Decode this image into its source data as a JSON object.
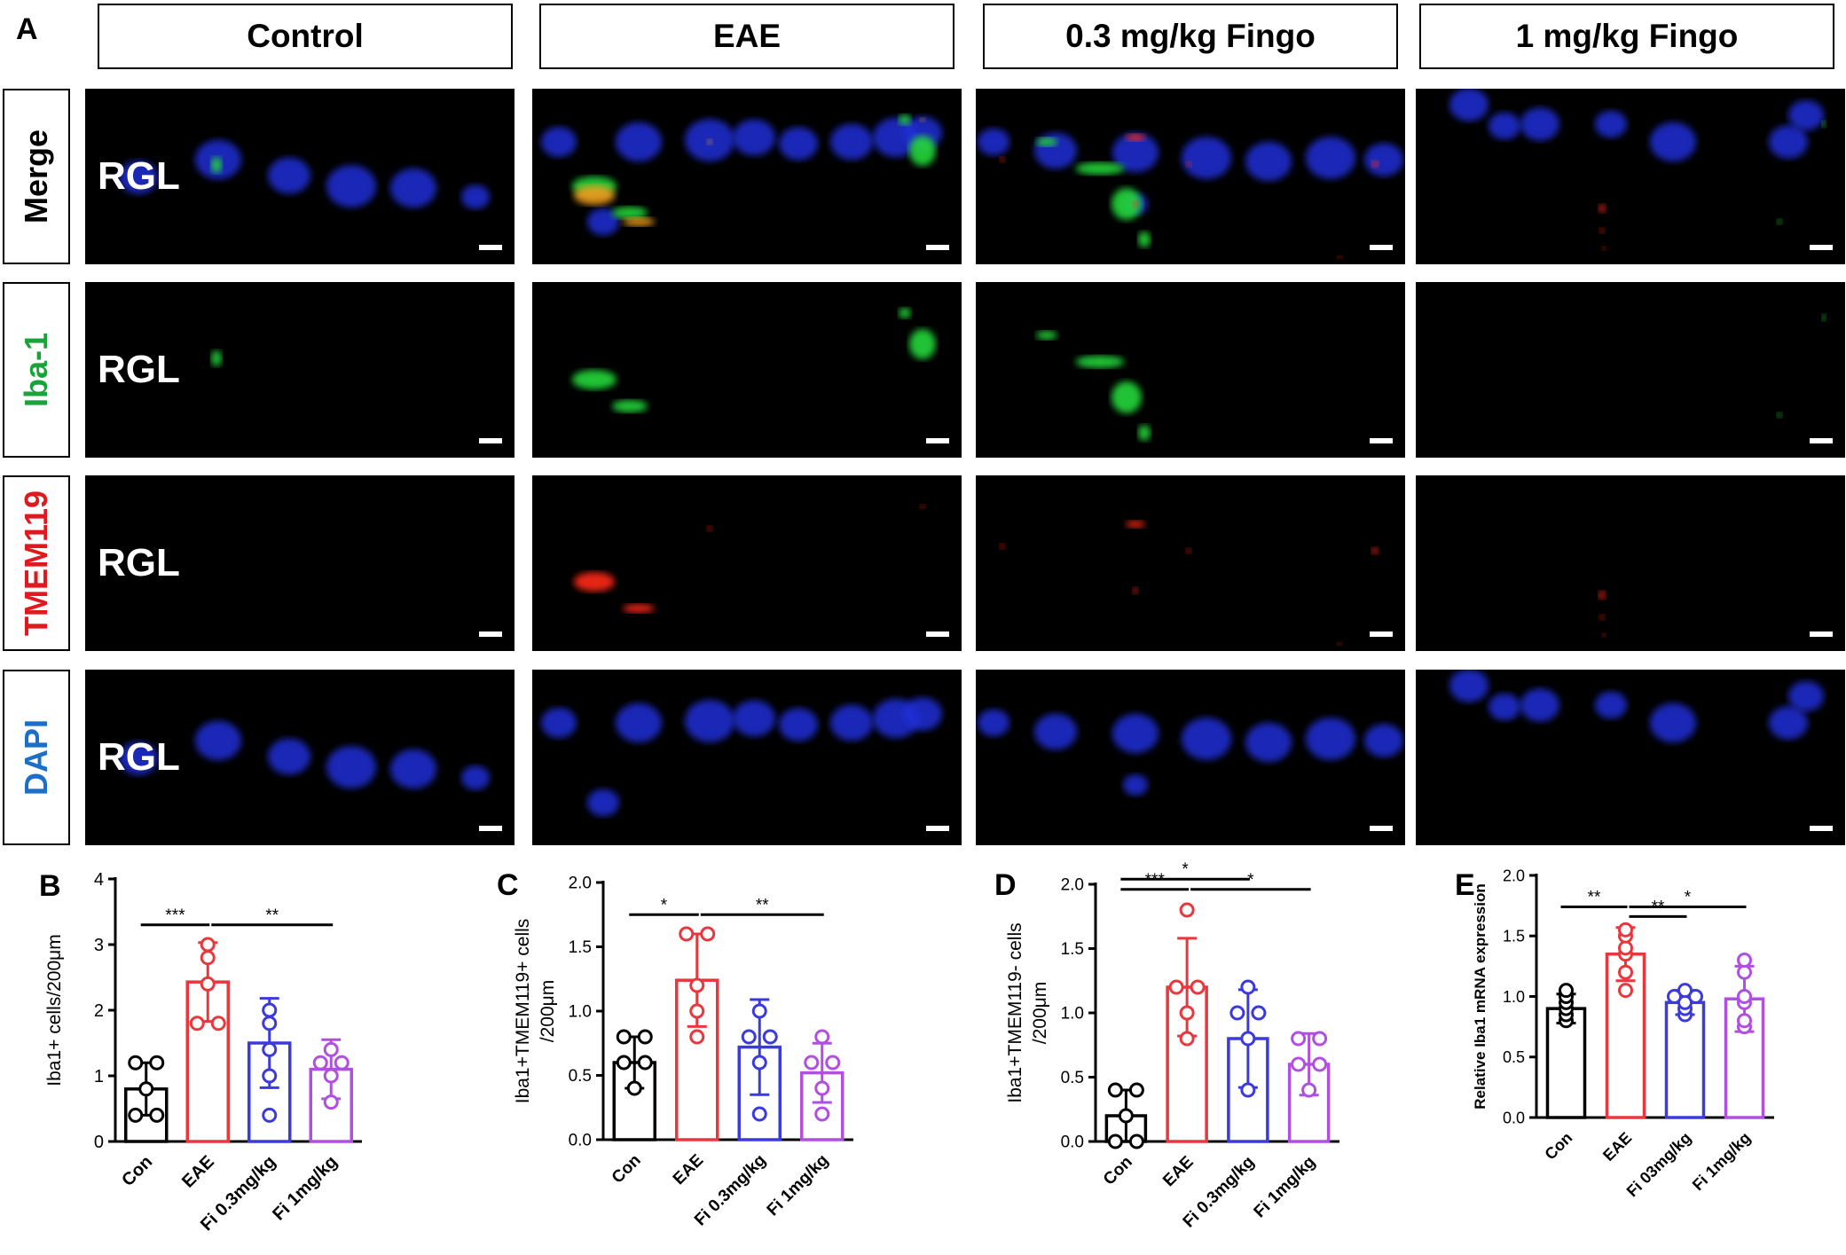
{
  "figure": {
    "panel_a": "A",
    "columns": [
      "Control",
      "EAE",
      "0.3 mg/kg Fingo",
      "1 mg/kg Fingo"
    ],
    "rows": [
      {
        "label": "Merge",
        "color": "#000000"
      },
      {
        "label": "Iba-1",
        "color": "#1aa33a"
      },
      {
        "label": "TMEM119",
        "color": "#e0191f"
      },
      {
        "label": "DAPI",
        "color": "#1b6fc7"
      }
    ],
    "region_label": "RGL"
  },
  "chart_data": [
    {
      "panel": "B",
      "type": "bar",
      "categories": [
        "Con",
        "EAE",
        "Fi 0.3mg/kg",
        "Fi 1mg/kg"
      ],
      "colors": [
        "#000000",
        "#e8383d",
        "#3a3adf",
        "#b14fe0"
      ],
      "values": [
        0.8,
        2.43,
        1.5,
        1.1
      ],
      "errors": [
        0.4,
        0.6,
        0.68,
        0.45
      ],
      "points": [
        [
          0.4,
          0.4,
          0.8,
          1.2,
          1.2
        ],
        [
          1.8,
          1.8,
          2.4,
          2.8,
          3.0
        ],
        [
          0.4,
          1.0,
          1.4,
          1.8,
          2.0
        ],
        [
          0.6,
          1.0,
          1.2,
          1.2,
          1.4
        ]
      ],
      "ylabel_parts": [
        "Iba1+ cells/200",
        "μ",
        "m"
      ],
      "ylim": [
        0,
        4
      ],
      "yticks": [
        "0",
        "1",
        "2",
        "3",
        "4"
      ],
      "sig": [
        {
          "from": 0,
          "to": 1,
          "y": 3.3,
          "label": "***"
        },
        {
          "from": 1,
          "to": 3,
          "y": 3.3,
          "label": "**"
        }
      ]
    },
    {
      "panel": "C",
      "type": "bar",
      "categories": [
        "Con",
        "EAE",
        "Fi 0.3mg/kg",
        "Fi 1mg/kg"
      ],
      "colors": [
        "#000000",
        "#e8383d",
        "#3a3adf",
        "#b14fe0"
      ],
      "values": [
        0.6,
        1.24,
        0.72,
        0.52
      ],
      "errors": [
        0.2,
        0.36,
        0.37,
        0.23
      ],
      "points": [
        [
          0.4,
          0.6,
          0.6,
          0.8,
          0.8
        ],
        [
          0.8,
          1.0,
          1.2,
          1.6,
          1.6
        ],
        [
          0.2,
          0.6,
          0.8,
          0.8,
          1.0
        ],
        [
          0.2,
          0.4,
          0.6,
          0.6,
          0.8
        ]
      ],
      "ylabel_lines": [
        "Iba1+TMEM119+ cells",
        "/200μm"
      ],
      "ylim": [
        0,
        2.0
      ],
      "yticks": [
        "0.0",
        "0.5",
        "1.0",
        "1.5",
        "2.0"
      ],
      "sig": [
        {
          "from": 0,
          "to": 1,
          "y": 1.75,
          "label": "*"
        },
        {
          "from": 1,
          "to": 3,
          "y": 1.75,
          "label": "**"
        }
      ]
    },
    {
      "panel": "D",
      "type": "bar",
      "categories": [
        "Con",
        "EAE",
        "Fi 0.3mg/kg",
        "Fi 1mg/kg"
      ],
      "colors": [
        "#000000",
        "#e8383d",
        "#3a3adf",
        "#b14fe0"
      ],
      "values": [
        0.2,
        1.2,
        0.8,
        0.6
      ],
      "errors": [
        0.2,
        0.38,
        0.38,
        0.24
      ],
      "points": [
        [
          0.0,
          0.0,
          0.2,
          0.4,
          0.4
        ],
        [
          0.8,
          1.0,
          1.2,
          1.2,
          1.8
        ],
        [
          0.4,
          0.8,
          1.0,
          1.0,
          1.2
        ],
        [
          0.4,
          0.6,
          0.6,
          0.8,
          0.8
        ]
      ],
      "ylabel_lines": [
        "Iba1+TMEM119- cells",
        "/200μm"
      ],
      "ylim": [
        0,
        2.0
      ],
      "yticks": [
        "0.0",
        "0.5",
        "1.0",
        "1.5",
        "2.0"
      ],
      "sig": [
        {
          "from": 0,
          "to": 2,
          "y": 2.04,
          "label": "*"
        },
        {
          "from": 0,
          "to": 1,
          "y": 1.96,
          "label": "***"
        },
        {
          "from": 1,
          "to": 3,
          "y": 1.96,
          "label": "*"
        }
      ]
    },
    {
      "panel": "E",
      "type": "bar",
      "categories": [
        "Con",
        "EAE",
        "Fi 03mg/kg",
        "Fi 1mg/kg"
      ],
      "colors": [
        "#000000",
        "#e8383d",
        "#3a3adf",
        "#b14fe0"
      ],
      "values": [
        0.9,
        1.35,
        0.95,
        0.98
      ],
      "errors": [
        0.12,
        0.22,
        0.1,
        0.27
      ],
      "points": [
        [
          0.8,
          0.85,
          0.9,
          0.95,
          1.0,
          1.05
        ],
        [
          1.05,
          1.2,
          1.35,
          1.4,
          1.5,
          1.55
        ],
        [
          0.85,
          0.9,
          0.95,
          1.0,
          1.0,
          1.05
        ],
        [
          0.75,
          0.8,
          0.95,
          1.0,
          1.2,
          1.3
        ]
      ],
      "ylabel": "Relative Iba1 mRNA expression",
      "ylim": [
        0,
        2.0
      ],
      "yticks": [
        "0.0",
        "0.5",
        "1.0",
        "1.5",
        "2.0"
      ],
      "sig": [
        {
          "from": 0,
          "to": 1,
          "y": 1.74,
          "label": "**"
        },
        {
          "from": 1,
          "to": 3,
          "y": 1.74,
          "label": "*"
        },
        {
          "from": 1,
          "to": 2,
          "y": 1.66,
          "label": "**"
        }
      ]
    }
  ]
}
